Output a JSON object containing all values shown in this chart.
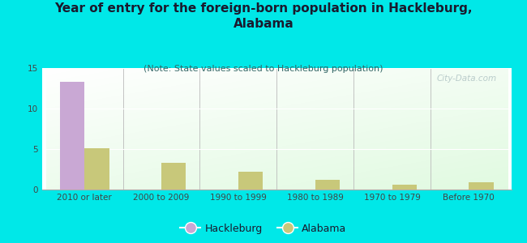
{
  "title": "Year of entry for the foreign-born population in Hackleburg,\nAlabama",
  "subtitle": "(Note: State values scaled to Hackleburg population)",
  "categories": [
    "2010 or later",
    "2000 to 2009",
    "1990 to 1999",
    "1980 to 1989",
    "1970 to 1979",
    "Before 1970"
  ],
  "hackleburg_values": [
    13.3,
    0,
    0,
    0,
    0,
    0
  ],
  "alabama_values": [
    5.1,
    3.3,
    2.2,
    1.2,
    0.6,
    0.9
  ],
  "hackleburg_color": "#c9a8d4",
  "alabama_color": "#c8c87a",
  "background_color": "#00e8e8",
  "ylim": [
    0,
    15
  ],
  "yticks": [
    0,
    5,
    10,
    15
  ],
  "bar_width": 0.32,
  "title_fontsize": 11,
  "subtitle_fontsize": 8,
  "tick_fontsize": 7.5,
  "legend_fontsize": 9,
  "title_color": "#1a1a2e",
  "subtitle_color": "#336666",
  "tick_color": "#444444",
  "watermark": "City-Data.com",
  "watermark_color": "#b0c4c4"
}
